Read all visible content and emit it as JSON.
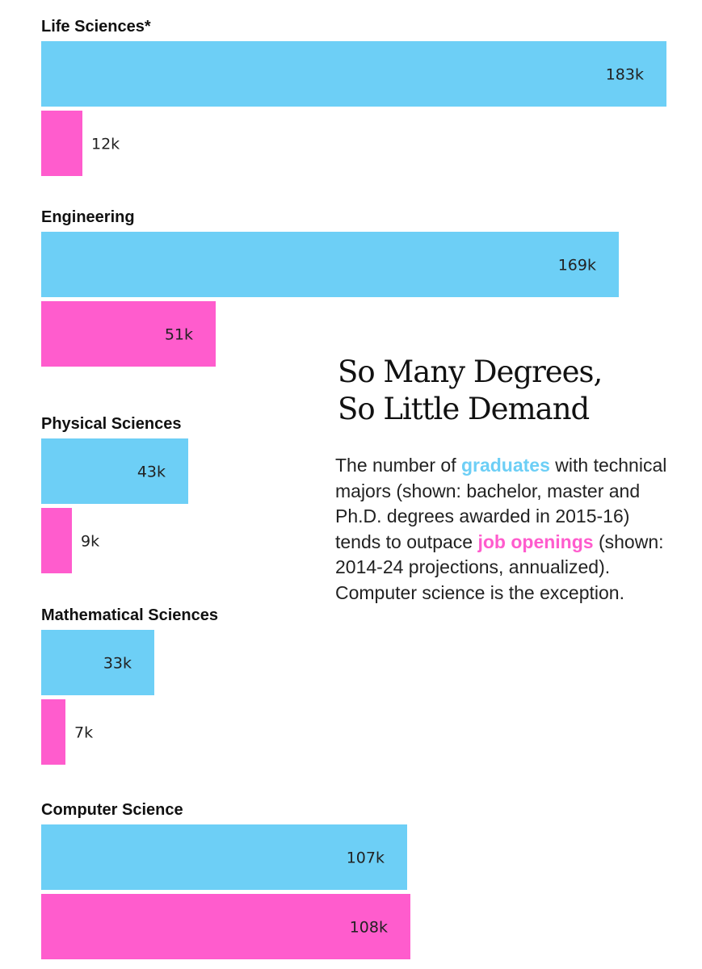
{
  "title_lines": [
    "So Many Degrees,",
    "So Little Demand"
  ],
  "description": {
    "part1": "The number of ",
    "graduates_word": "graduates",
    "part2": " with technical majors (shown: bachelor, master and Ph.D. degrees awarded in 2015-16) tends to outpace ",
    "job_word": "job openings",
    "part3": " (shown: 2014-24 projections, annualized). Computer science is the exception."
  },
  "colors": {
    "graduates": "#6dcff6",
    "job_openings": "#ff5ccd"
  },
  "chart_data": {
    "type": "bar",
    "orientation": "horizontal",
    "categories": [
      "Life Sciences*",
      "Engineering",
      "Physical Sciences",
      "Mathematical Sciences",
      "Computer Science"
    ],
    "series": [
      {
        "key": "graduates",
        "values": [
          183,
          169,
          43,
          33,
          107
        ],
        "labels": [
          "183k",
          "169k",
          "43k",
          "33k",
          "107k"
        ]
      },
      {
        "key": "job_openings",
        "values": [
          12,
          51,
          9,
          7,
          108
        ],
        "labels": [
          "12k",
          "51k",
          "9k",
          "7k",
          "108k"
        ]
      }
    ],
    "unit": "k",
    "xlim": [
      0,
      183
    ],
    "grid": false,
    "legend": "none"
  }
}
